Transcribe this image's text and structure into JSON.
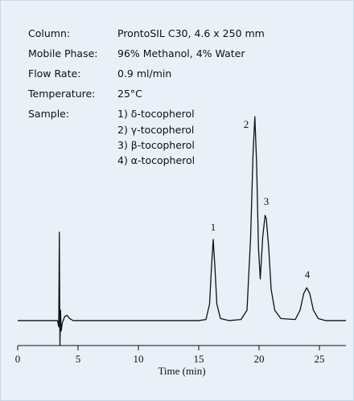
{
  "chart_data": {
    "type": "line",
    "info": [
      {
        "label": "Column:",
        "value": "ProntoSIL C30, 4.6 x 250 mm"
      },
      {
        "label": "Mobile Phase:",
        "value": "96% Methanol, 4% Water"
      },
      {
        "label": "Flow Rate:",
        "value": "0.9 ml/min"
      },
      {
        "label": "Temperature:",
        "value": "25°C"
      },
      {
        "label": "Sample:",
        "value": "1) δ-tocopherol"
      }
    ],
    "sample_more": [
      "2) γ-tocopherol",
      "3) β-tocopherol",
      "4) α-tocopherol"
    ],
    "peak_labels": [
      "1",
      "2",
      "3",
      "4"
    ],
    "xlabel": "Time (min)",
    "xlim": [
      0,
      27.2
    ],
    "xticks": [
      0,
      5,
      10,
      15,
      20,
      25
    ],
    "ylim": [
      -12,
      100
    ],
    "color": "#111111",
    "x": [
      0,
      3.3,
      3.4,
      3.45,
      3.5,
      3.55,
      3.6,
      3.7,
      3.9,
      4.1,
      4.3,
      4.6,
      15,
      15.6,
      15.9,
      16.05,
      16.2,
      16.35,
      16.5,
      16.8,
      17.5,
      18.5,
      19,
      19.3,
      19.5,
      19.65,
      19.8,
      19.95,
      20.1,
      20.3,
      20.5,
      20.6,
      20.8,
      21.0,
      21.3,
      21.8,
      23,
      23.4,
      23.7,
      23.95,
      24.2,
      24.5,
      24.9,
      25.5,
      27.2
    ],
    "values": [
      0,
      0,
      -3,
      42.5,
      -12,
      5,
      -5,
      -1,
      2,
      2.5,
      1,
      0,
      0,
      0.5,
      8,
      25,
      39,
      25,
      8,
      1,
      0,
      0.5,
      5,
      40,
      80,
      98,
      75,
      35,
      20,
      40,
      50.6,
      49,
      35,
      15,
      5,
      1,
      0.5,
      5,
      13,
      15.8,
      13,
      5,
      1,
      0,
      0
    ]
  }
}
